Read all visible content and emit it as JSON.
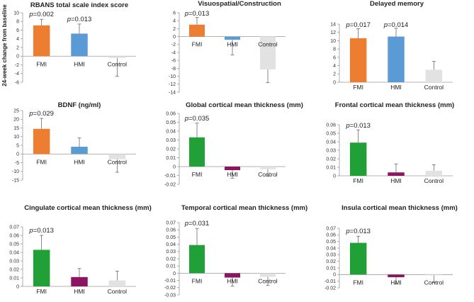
{
  "figure": {
    "ylabel": "24-week change from baseline",
    "colors": {
      "fmi_orange": "#ED7D31",
      "hmi_blue": "#5B9BD5",
      "fmi_green": "#22A038",
      "hmi_purple": "#8B1561",
      "control_gray": "#E2E2E2",
      "axis": "#9A9A9A",
      "errbar": "#555555"
    }
  },
  "chart_data": [
    {
      "type": "bar",
      "title": "RBANS total scale index score",
      "categories": [
        "FMI",
        "HMI",
        "Control"
      ],
      "values": [
        7.1,
        5.2,
        -0.4
      ],
      "errors": [
        1.4,
        2.2,
        4.2
      ],
      "colors": [
        "fmi_orange",
        "hmi_blue",
        "control_gray"
      ],
      "pvalues": [
        "p=0.002",
        "p=0.013",
        ""
      ],
      "ylim": [
        -6,
        10
      ],
      "yticks": [
        -6,
        -4,
        -2,
        0,
        2,
        4,
        6,
        8,
        10
      ],
      "tick_labels": [
        "-6",
        "-4",
        "-2",
        "0",
        "2",
        "4",
        "6",
        "8",
        "10"
      ],
      "cat_labels_below": false
    },
    {
      "type": "bar",
      "title": "Visuospatial/Construction",
      "categories": [
        "FMI",
        "HMI",
        "Control"
      ],
      "values": [
        3.0,
        -0.8,
        -8.3
      ],
      "errors": [
        1.8,
        3.8,
        3.3
      ],
      "colors": [
        "fmi_orange",
        "hmi_blue",
        "control_gray"
      ],
      "pvalues": [
        "p=0.013",
        "",
        ""
      ],
      "ylim": [
        -14,
        6
      ],
      "yticks": [
        -14,
        -12,
        -10,
        -8,
        -6,
        -4,
        -2,
        0,
        2,
        4,
        6
      ],
      "tick_labels": [
        "-14",
        "-12",
        "-10",
        "-8",
        "-6",
        "-4",
        "-2",
        "0",
        "2",
        "4",
        "6"
      ],
      "cat_labels_below": false
    },
    {
      "type": "bar",
      "title": "Delayed memory",
      "categories": [
        "FMI",
        "HMI",
        "Control"
      ],
      "values": [
        10.6,
        11.0,
        3.0
      ],
      "errors": [
        2.3,
        2.0,
        2.0
      ],
      "colors": [
        "fmi_orange",
        "hmi_blue",
        "control_gray"
      ],
      "pvalues": [
        "p=0.017",
        "p=0.014",
        ""
      ],
      "ylim": [
        0,
        14
      ],
      "yticks": [
        0,
        2,
        4,
        6,
        8,
        10,
        12,
        14
      ],
      "tick_labels": [
        "0",
        "2",
        "4",
        "6",
        "8",
        "10",
        "12",
        "14"
      ],
      "cat_labels_below": true
    },
    {
      "type": "bar",
      "title": "BDNF (ng/ml)",
      "categories": [
        "FMI",
        "HMI",
        "Control"
      ],
      "values": [
        14.5,
        4.2,
        -3.0
      ],
      "errors": [
        6.0,
        5.0,
        7.5
      ],
      "colors": [
        "fmi_orange",
        "hmi_blue",
        "control_gray"
      ],
      "pvalues": [
        "p=0.029",
        "",
        ""
      ],
      "ylim": [
        -15,
        25
      ],
      "yticks": [
        -15,
        -10,
        -5,
        0,
        5,
        10,
        15,
        20,
        25
      ],
      "tick_labels": [
        "-15",
        "-10",
        "-5",
        "0",
        "5",
        "10",
        "15",
        "20",
        "25"
      ],
      "cat_labels_below": false
    },
    {
      "type": "bar",
      "title": "Global cortical mean thickness (mm)",
      "categories": [
        "FMI",
        "HMI",
        "Control"
      ],
      "values": [
        0.033,
        -0.004,
        -0.003
      ],
      "errors": [
        0.016,
        0.009,
        0.008
      ],
      "colors": [
        "fmi_green",
        "hmi_purple",
        "control_gray"
      ],
      "pvalues": [
        "p=0.035",
        "",
        ""
      ],
      "ylim": [
        -0.02,
        0.06
      ],
      "yticks": [
        -0.02,
        -0.01,
        0,
        0.01,
        0.02,
        0.03,
        0.04,
        0.05,
        0.06
      ],
      "tick_labels": [
        "-0.02",
        "-0.01",
        "0",
        "0.01",
        "0.02",
        "0.03",
        "0.04",
        "0.05",
        "0.06"
      ],
      "cat_labels_below": false
    },
    {
      "type": "bar",
      "title": "Frontal cortical mean thickness (mm)",
      "categories": [
        "FMI",
        "HMI",
        "Control"
      ],
      "values": [
        0.039,
        0.004,
        0.006
      ],
      "errors": [
        0.015,
        0.01,
        0.007
      ],
      "colors": [
        "fmi_green",
        "hmi_purple",
        "control_gray"
      ],
      "pvalues": [
        "p=0.013",
        "",
        ""
      ],
      "ylim": [
        0,
        0.06
      ],
      "yticks": [
        0,
        0.01,
        0.02,
        0.03,
        0.04,
        0.05,
        0.06
      ],
      "tick_labels": [
        "0",
        "0.01",
        "0.02",
        "0.03",
        "0.04",
        "0.05",
        "0.06"
      ],
      "cat_labels_below": true
    },
    {
      "type": "bar",
      "title": "Cingulate cortical mean thickness (mm)",
      "categories": [
        "FMI",
        "HMI",
        "Control"
      ],
      "values": [
        0.043,
        0.011,
        0.007
      ],
      "errors": [
        0.017,
        0.01,
        0.011
      ],
      "colors": [
        "fmi_green",
        "hmi_purple",
        "control_gray"
      ],
      "pvalues": [
        "p=0.013",
        "",
        ""
      ],
      "ylim": [
        0,
        0.07
      ],
      "yticks": [
        0,
        0.01,
        0.02,
        0.03,
        0.04,
        0.05,
        0.06,
        0.07
      ],
      "tick_labels": [
        "0",
        "0.01",
        "0.02",
        "0.03",
        "0.04",
        "0.05",
        "0.06",
        "0.07"
      ],
      "cat_labels_below": true
    },
    {
      "type": "bar",
      "title": "Temporal cortical mean thickness (mm)",
      "categories": [
        "FMI",
        "HMI",
        "Control"
      ],
      "values": [
        0.039,
        -0.006,
        -0.005
      ],
      "errors": [
        0.023,
        0.012,
        0.012
      ],
      "colors": [
        "fmi_green",
        "hmi_purple",
        "control_gray"
      ],
      "pvalues": [
        "p=0.031",
        "",
        ""
      ],
      "ylim": [
        -0.03,
        0.07
      ],
      "yticks": [
        -0.03,
        -0.02,
        -0.01,
        0,
        0.01,
        0.02,
        0.03,
        0.04,
        0.05,
        0.06,
        0.07
      ],
      "tick_labels": [
        "-0.03",
        "-0.02",
        "-0.01",
        "0",
        "0.01",
        "0.02",
        "0.03",
        "0.04",
        "0.05",
        "0.06",
        "0.07"
      ],
      "cat_labels_below": false
    },
    {
      "type": "bar",
      "title": "Insula cortical mean thickness (mm)",
      "categories": [
        "FMI",
        "HMI",
        "Control"
      ],
      "values": [
        0.048,
        -0.004,
        -0.001
      ],
      "errors": [
        0.01,
        0.01,
        0.011
      ],
      "colors": [
        "fmi_green",
        "hmi_purple",
        "control_gray"
      ],
      "pvalues": [
        "p=0.013",
        "",
        ""
      ],
      "ylim": [
        -0.02,
        0.07
      ],
      "yticks": [
        -0.02,
        -0.01,
        0,
        0.01,
        0.02,
        0.03,
        0.04,
        0.05,
        0.06,
        0.07
      ],
      "tick_labels": [
        "-0.02",
        "-0.01",
        "0",
        "0.01",
        "0.02",
        "0.03",
        "0.04",
        "0.05",
        "0.06",
        "0.07"
      ],
      "cat_labels_below": false
    }
  ]
}
